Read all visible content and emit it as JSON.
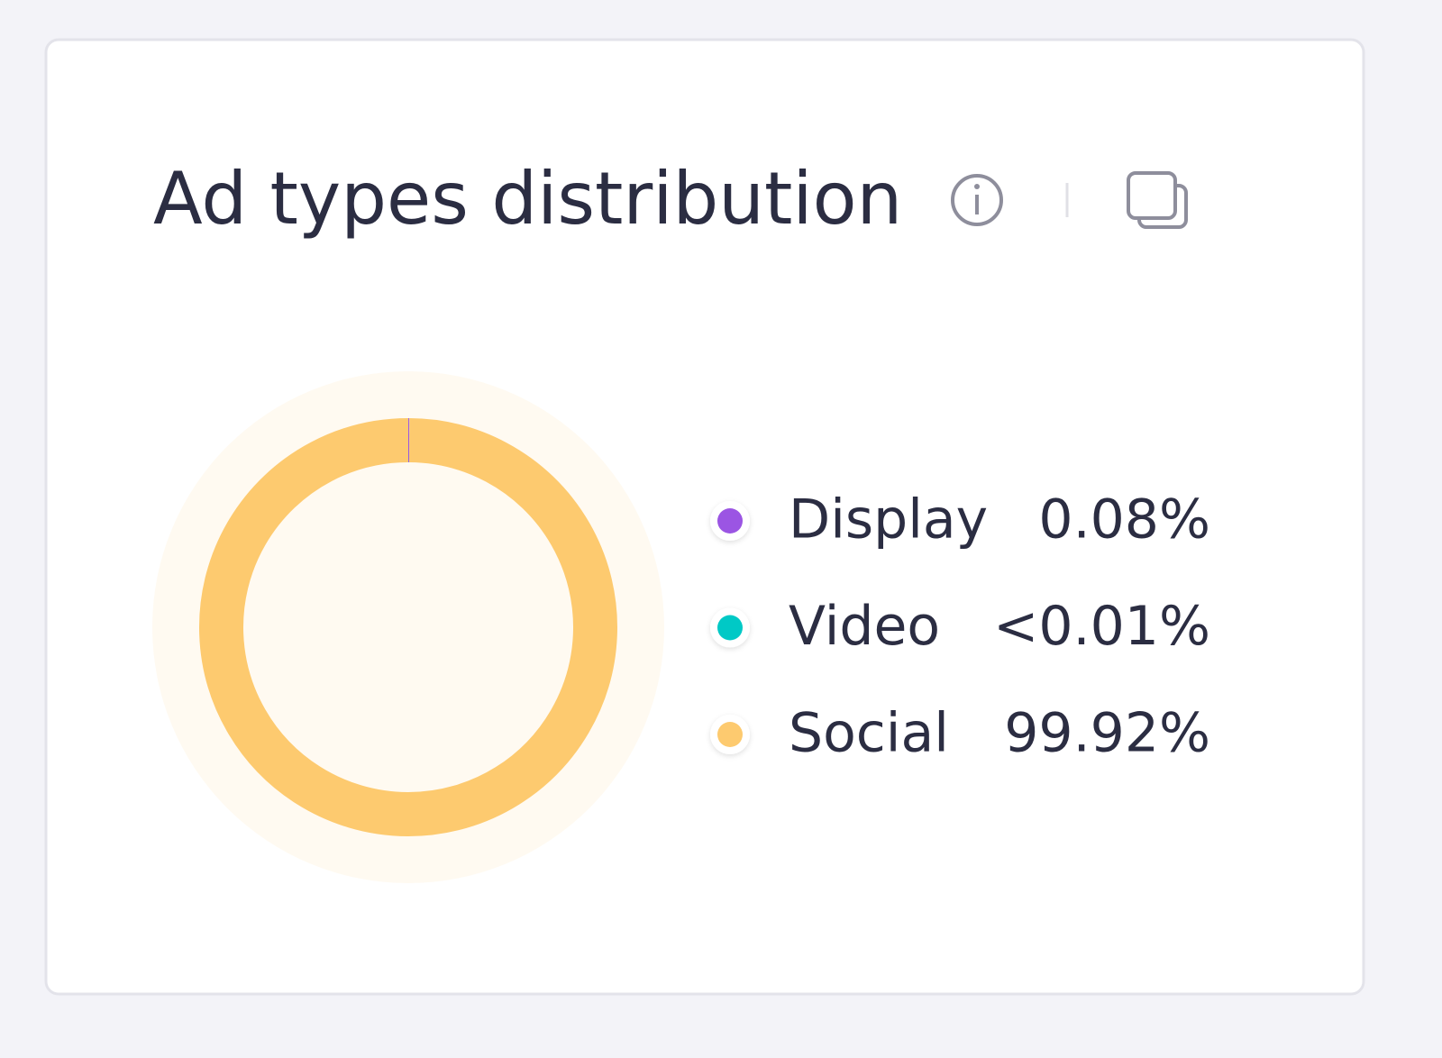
{
  "chart_data": {
    "type": "pie",
    "title": "Ad types distribution",
    "categories": [
      "Display",
      "Video",
      "Social"
    ],
    "values": [
      0.08,
      0.005,
      99.92
    ],
    "value_labels": [
      "0.08%",
      "<0.01%",
      "99.92%"
    ],
    "colors": [
      "#9b55e3",
      "#00c9c6",
      "#fdca6f"
    ]
  }
}
